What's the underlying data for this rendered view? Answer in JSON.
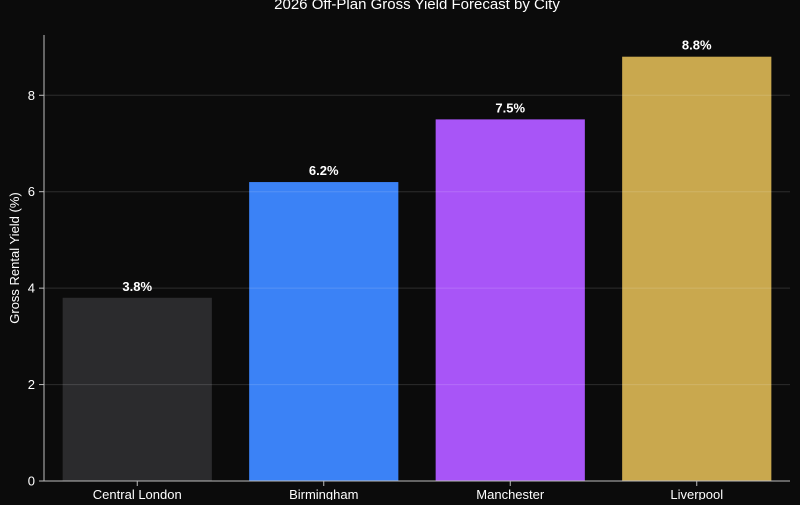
{
  "chart_data": {
    "type": "bar",
    "title": "2026 Off-Plan Gross Yield Forecast by City",
    "xlabel": "",
    "ylabel": "Gross Rental Yield (%)",
    "categories": [
      "Central London",
      "Birmingham",
      "Manchester",
      "Liverpool"
    ],
    "values": [
      3.8,
      6.2,
      7.5,
      8.8
    ],
    "data_labels": [
      "3.8%",
      "6.2%",
      "7.5%",
      "8.8%"
    ],
    "colors": [
      "#2b2b2d",
      "#3b82f6",
      "#a855f7",
      "#c9a84e"
    ],
    "ylim": [
      0,
      9.25
    ],
    "yticks": [
      0,
      2,
      4,
      6,
      8
    ],
    "grid": true,
    "background": "#0b0b0b"
  }
}
